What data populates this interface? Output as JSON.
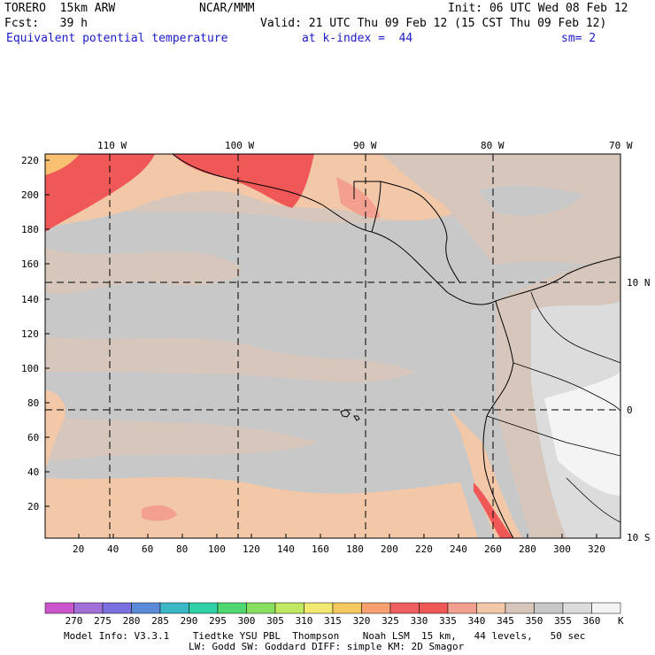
{
  "header": {
    "model": "TORERO  15km ARW",
    "center": "NCAR/MMM",
    "init": "Init: 06 UTC Wed 08 Feb 12",
    "fcst": "Fcst:   39 h",
    "valid": "Valid: 21 UTC Thu 09 Feb 12 (15 CST Thu 09 Feb 12)",
    "field": "Equivalent potential temperature",
    "level": "at k-index =  44",
    "smooth": "sm= 2"
  },
  "top_axis": [
    "110 W",
    "100 W",
    "90 W",
    "80 W",
    "70 W"
  ],
  "right_axis": [
    "10 N",
    "0",
    "10 S"
  ],
  "left_axis": [
    "220",
    "200",
    "180",
    "160",
    "140",
    "120",
    "100",
    "80",
    "60",
    "40",
    "20"
  ],
  "bottom_axis": [
    "20",
    "40",
    "60",
    "80",
    "100",
    "120",
    "140",
    "160",
    "180",
    "200",
    "220",
    "240",
    "260",
    "280",
    "300",
    "320"
  ],
  "colorbar": {
    "labels": [
      "270",
      "275",
      "280",
      "285",
      "290",
      "295",
      "300",
      "305",
      "310",
      "315",
      "320",
      "325",
      "330",
      "335",
      "340",
      "345",
      "350",
      "355",
      "360"
    ],
    "unit": "K",
    "colors": [
      "#cc55cc",
      "#a070d8",
      "#7a70e0",
      "#5a8ad8",
      "#3ab8c8",
      "#30d0a8",
      "#50d870",
      "#88e060",
      "#c0e860",
      "#f0e870",
      "#f8c860",
      "#f8a070",
      "#f06060",
      "#f05858",
      "#f4a090",
      "#f2c8a8",
      "#d6c6bc",
      "#c8c8c8",
      "#dcdcdc",
      "#f4f4f4"
    ]
  },
  "footer": {
    "line1": "Model Info: V3.3.1    Tiedtke YSU PBL  Thompson    Noah LSM  15 km,   44 levels,   50 sec",
    "line2": "LW: Godd SW: Goddard DIFF: simple KM: 2D Smagor"
  },
  "icons": {
    "map": "map-plot"
  },
  "colors": {
    "ocean": "#c8c8c8",
    "warm": "#f2c8a8",
    "hot": "#f05858",
    "tan": "#d6c6bc"
  }
}
